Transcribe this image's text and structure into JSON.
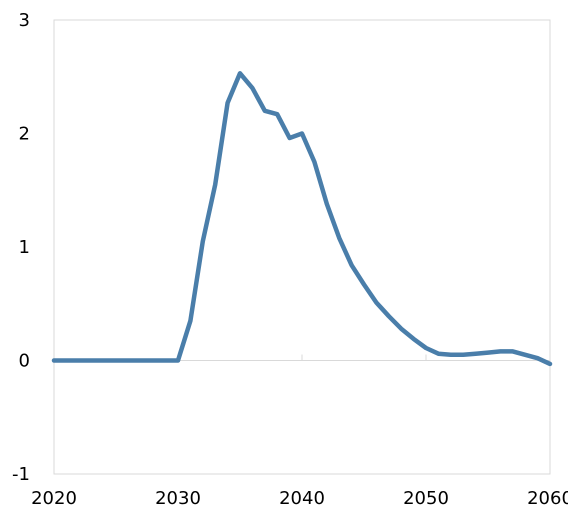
{
  "chart_data": {
    "type": "line",
    "xlim": [
      2020,
      2060
    ],
    "ylim": [
      -1,
      3
    ],
    "x_ticks": [
      2020,
      2030,
      2040,
      2050,
      2060
    ],
    "y_ticks": [
      -1,
      0,
      1,
      2,
      3
    ],
    "x_tick_labels": [
      "2020",
      "2030",
      "2040",
      "2050",
      "2060"
    ],
    "y_tick_labels": [
      "-1",
      "0",
      "1",
      "2",
      "3"
    ],
    "grid": false,
    "legend": "none",
    "series": [
      {
        "color": "#4A7EAA",
        "x": [
          2020,
          2021,
          2022,
          2023,
          2024,
          2025,
          2026,
          2027,
          2028,
          2029,
          2030,
          2031,
          2032,
          2033,
          2034,
          2035,
          2036,
          2037,
          2038,
          2039,
          2040,
          2041,
          2042,
          2043,
          2044,
          2045,
          2046,
          2047,
          2048,
          2049,
          2050,
          2051,
          2052,
          2053,
          2054,
          2055,
          2056,
          2057,
          2058,
          2059,
          2060
        ],
        "y": [
          0,
          0,
          0,
          0,
          0,
          0,
          0,
          0,
          0,
          0,
          0,
          0.35,
          1.05,
          1.55,
          2.27,
          2.53,
          2.4,
          2.2,
          2.17,
          1.96,
          2.0,
          1.75,
          1.38,
          1.08,
          0.84,
          0.67,
          0.51,
          0.39,
          0.28,
          0.19,
          0.11,
          0.06,
          0.05,
          0.05,
          0.06,
          0.07,
          0.08,
          0.08,
          0.05,
          0.02,
          -0.03
        ]
      }
    ]
  }
}
